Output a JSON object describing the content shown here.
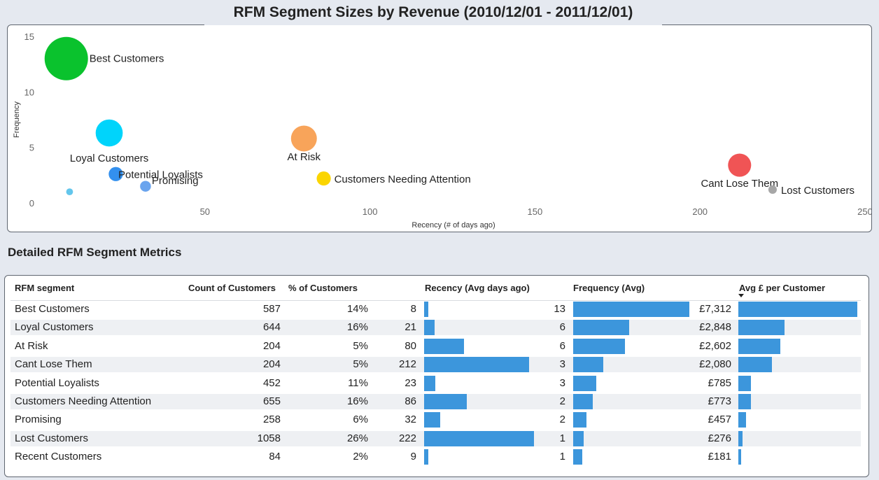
{
  "page_title": "RFM Segment Sizes by Revenue (2010/12/01 - 2011/12/01)",
  "section_title": "Detailed RFM Segment Metrics",
  "chart_data": {
    "type": "scatter",
    "title": "RFM Segment Sizes by Revenue (2010/12/01 - 2011/12/01)",
    "xlabel": "Recency (# of days ago)",
    "ylabel": "Frequency",
    "xlim": [
      0,
      250
    ],
    "ylim": [
      0,
      15
    ],
    "x_ticks": [
      "50",
      "100",
      "150",
      "200",
      "250"
    ],
    "y_ticks": [
      "0",
      "5",
      "10",
      "15"
    ],
    "grid": false,
    "points": [
      {
        "label": "Best Customers",
        "x": 8,
        "y": 13,
        "color": "#0ac22d",
        "size": 7312
      },
      {
        "label": "Loyal Customers",
        "x": 21,
        "y": 6.3,
        "color": "#00d4fb",
        "size": 2848
      },
      {
        "label": "At Risk",
        "x": 80,
        "y": 5.8,
        "color": "#f8a45a",
        "size": 2602
      },
      {
        "label": "Cant Lose Them",
        "x": 212,
        "y": 3.4,
        "color": "#f05455",
        "size": 2080
      },
      {
        "label": "Potential Loyalists",
        "x": 23,
        "y": 2.6,
        "color": "#3390ee",
        "size": 785
      },
      {
        "label": "Customers Needing Attention",
        "x": 86,
        "y": 2.2,
        "color": "#fbd500",
        "size": 773
      },
      {
        "label": "Promising",
        "x": 32,
        "y": 1.5,
        "color": "#6aa4ee",
        "size": 457
      },
      {
        "label": "Lost Customers",
        "x": 222,
        "y": 1.2,
        "color": "#a7a7a7",
        "size": 276
      },
      {
        "label": "Recent Customers",
        "x": 9,
        "y": 1.0,
        "color": "#63c6ec",
        "size": 181
      }
    ]
  },
  "table": {
    "headers": {
      "segment": "RFM segment",
      "count": "Count of Customers",
      "pct": "% of Customers",
      "recency": "Recency (Avg days ago)",
      "frequency": "Frequency (Avg)",
      "avg_spend": "Avg £ per Customer"
    },
    "bar_color": "#3c96dc",
    "rows": [
      {
        "segment": "Best Customers",
        "count": "587",
        "pct": "14%",
        "recency": "8",
        "frequency": "13",
        "avg_spend": "£7,312",
        "recency_v": 8,
        "frequency_v": 13,
        "spend_v": 7312
      },
      {
        "segment": "Loyal Customers",
        "count": "644",
        "pct": "16%",
        "recency": "21",
        "frequency": "6",
        "avg_spend": "£2,848",
        "recency_v": 21,
        "frequency_v": 6.3,
        "spend_v": 2848
      },
      {
        "segment": "At Risk",
        "count": "204",
        "pct": "5%",
        "recency": "80",
        "frequency": "6",
        "avg_spend": "£2,602",
        "recency_v": 80,
        "frequency_v": 5.8,
        "spend_v": 2602
      },
      {
        "segment": "Cant Lose Them",
        "count": "204",
        "pct": "5%",
        "recency": "212",
        "frequency": "3",
        "avg_spend": "£2,080",
        "recency_v": 212,
        "frequency_v": 3.4,
        "spend_v": 2080
      },
      {
        "segment": "Potential Loyalists",
        "count": "452",
        "pct": "11%",
        "recency": "23",
        "frequency": "3",
        "avg_spend": "£785",
        "recency_v": 23,
        "frequency_v": 2.6,
        "spend_v": 785
      },
      {
        "segment": "Customers Needing Attention",
        "count": "655",
        "pct": "16%",
        "recency": "86",
        "frequency": "2",
        "avg_spend": "£773",
        "recency_v": 86,
        "frequency_v": 2.2,
        "spend_v": 773
      },
      {
        "segment": "Promising",
        "count": "258",
        "pct": "6%",
        "recency": "32",
        "frequency": "2",
        "avg_spend": "£457",
        "recency_v": 32,
        "frequency_v": 1.5,
        "spend_v": 457
      },
      {
        "segment": "Lost Customers",
        "count": "1058",
        "pct": "26%",
        "recency": "222",
        "frequency": "1",
        "avg_spend": "£276",
        "recency_v": 222,
        "frequency_v": 1.2,
        "spend_v": 276
      },
      {
        "segment": "Recent Customers",
        "count": "84",
        "pct": "2%",
        "recency": "9",
        "frequency": "1",
        "avg_spend": "£181",
        "recency_v": 9,
        "frequency_v": 1.0,
        "spend_v": 181
      }
    ]
  }
}
